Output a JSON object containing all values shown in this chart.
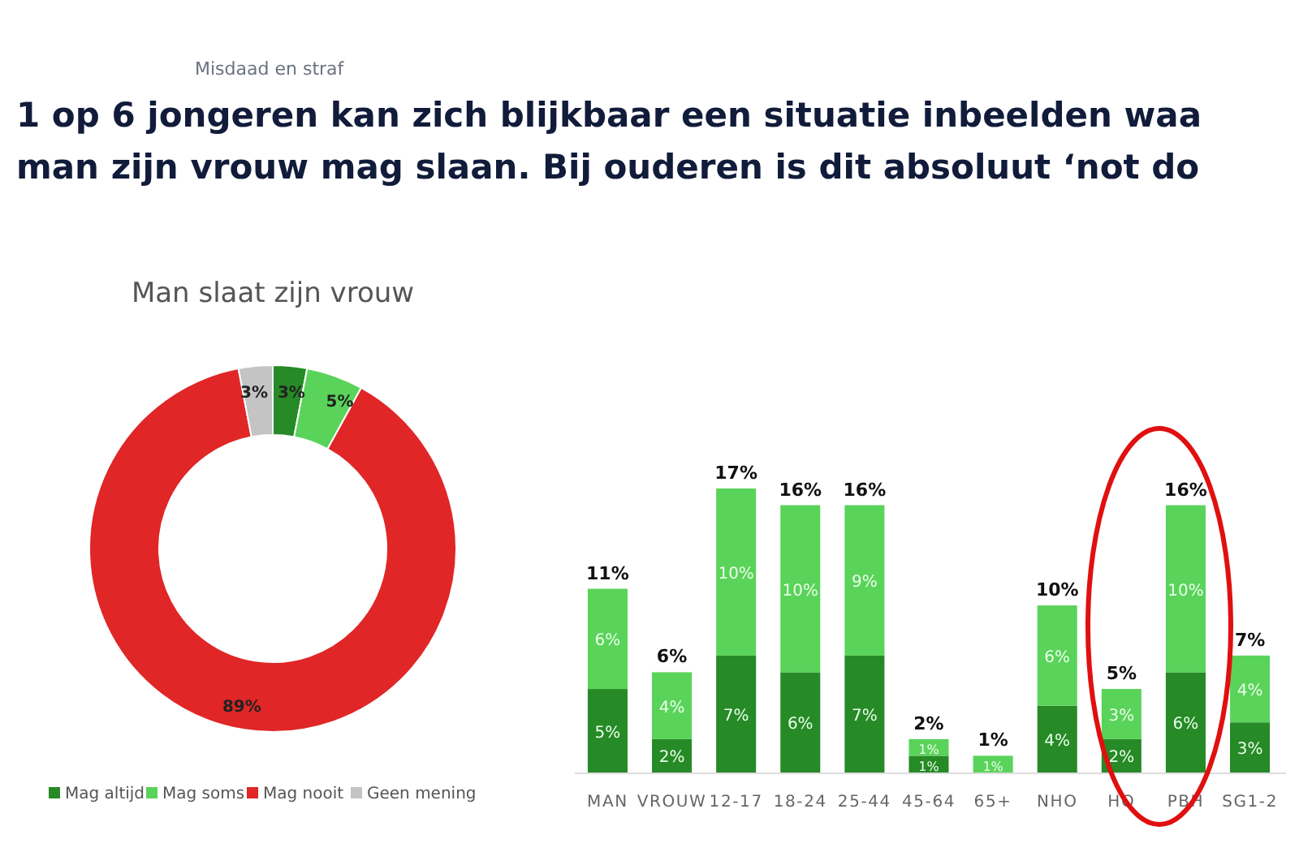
{
  "chart_data": [
    {
      "type": "donut",
      "title": "Man slaat zijn vrouw",
      "annotations": [
        "Misdaad en straf",
        "1 op 6 jongeren kan zich blijkbaar een situatie inbeelden waa",
        "man zijn vrouw mag slaan. Bij ouderen is dit absoluut ‘not do"
      ],
      "categories": [
        "Mag altijd",
        "Mag soms",
        "Mag nooit",
        "Geen mening"
      ],
      "values": [
        3,
        5,
        89,
        3
      ],
      "colors": [
        "#268a26",
        "#5ad35a",
        "#e02626",
        "#c4c4c4"
      ],
      "value_labels": [
        "3%",
        "5%",
        "89%",
        "3%"
      ],
      "legend": "bottom"
    },
    {
      "type": "bar",
      "stacked": true,
      "categories": [
        "MAN",
        "VROUW",
        "12-17",
        "18-24",
        "25-44",
        "45-64",
        "65+",
        "NHO",
        "HO",
        "PBH",
        "SG1-2"
      ],
      "series": [
        {
          "color": "#268a26",
          "values": [
            5,
            2,
            7,
            6,
            7,
            1,
            null,
            4,
            2,
            6,
            3
          ],
          "value_labels": [
            "5%",
            "2%",
            "7%",
            "6%",
            "7%",
            "1%",
            null,
            "4%",
            "2%",
            "6%",
            "3%"
          ]
        },
        {
          "color": "#5ad35a",
          "values": [
            6,
            4,
            10,
            10,
            9,
            1,
            1,
            6,
            3,
            10,
            4
          ],
          "value_labels": [
            "6%",
            "4%",
            "10%",
            "10%",
            "9%",
            "1%",
            "1%",
            "6%",
            "3%",
            "10%",
            "4%"
          ]
        }
      ],
      "totals": [
        "11%",
        "6%",
        "17%",
        "16%",
        "16%",
        "2%",
        "1%",
        "10%",
        "5%",
        "16%",
        "7%"
      ]
    }
  ]
}
